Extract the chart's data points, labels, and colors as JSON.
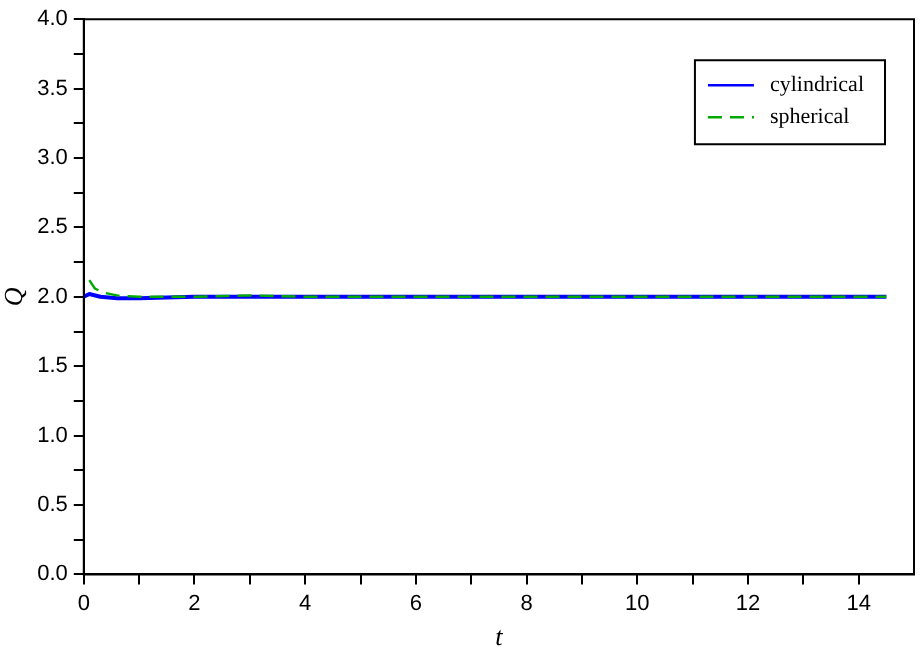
{
  "chart_data": {
    "type": "line",
    "xlabel": "t",
    "ylabel": "Q",
    "xlim": [
      0,
      15
    ],
    "ylim": [
      0,
      4
    ],
    "xticks": [
      0,
      {
        "value": 1,
        "label": null
      },
      2,
      {
        "value": 3,
        "label": null
      },
      4,
      {
        "value": 5,
        "label": null
      },
      6,
      {
        "value": 7,
        "label": null
      },
      8,
      {
        "value": 9,
        "label": null
      },
      10,
      {
        "value": 11,
        "label": null
      },
      12,
      {
        "value": 13,
        "label": null
      },
      14
    ],
    "yticks": [
      {
        "value": 0,
        "label": "0.0"
      },
      {
        "value": 0.25,
        "label": null
      },
      {
        "value": 0.5,
        "label": "0.5"
      },
      {
        "value": 0.75,
        "label": null
      },
      {
        "value": 1,
        "label": "1.0"
      },
      {
        "value": 1.25,
        "label": null
      },
      {
        "value": 1.5,
        "label": "1.5"
      },
      {
        "value": 1.75,
        "label": null
      },
      {
        "value": 2,
        "label": "2.0"
      },
      {
        "value": 2.25,
        "label": null
      },
      {
        "value": 2.5,
        "label": "2.5"
      },
      {
        "value": 2.75,
        "label": null
      },
      {
        "value": 3,
        "label": "3.0"
      },
      {
        "value": 3.25,
        "label": null
      },
      {
        "value": 3.5,
        "label": "3.5"
      },
      {
        "value": 3.75,
        "label": null
      },
      {
        "value": 4,
        "label": "4.0"
      }
    ],
    "legend": "top right",
    "grid": false,
    "marker": "none",
    "series": [
      {
        "name": "cylindrical",
        "color": "#0000ff",
        "line_style": "solid",
        "x": [
          0,
          0.1,
          0.3,
          0.6,
          1,
          2,
          3,
          4,
          6,
          8,
          10,
          12,
          14.5
        ],
        "values": [
          2.0,
          2.02,
          2.0,
          1.99,
          1.99,
          2.0,
          2.0,
          2.0,
          2.0,
          2.0,
          2.0,
          2.0,
          2.0
        ]
      },
      {
        "name": "spherical",
        "color": "#00aa00",
        "line_style": "dashed",
        "x": [
          0.1,
          0.2,
          0.35,
          0.6,
          1,
          2,
          3,
          4,
          6,
          8,
          10,
          12,
          14.5
        ],
        "values": [
          2.12,
          2.06,
          2.03,
          2.01,
          2.0,
          2.0,
          2.01,
          2.0,
          2.0,
          2.0,
          2.0,
          2.0,
          2.0
        ]
      }
    ]
  }
}
